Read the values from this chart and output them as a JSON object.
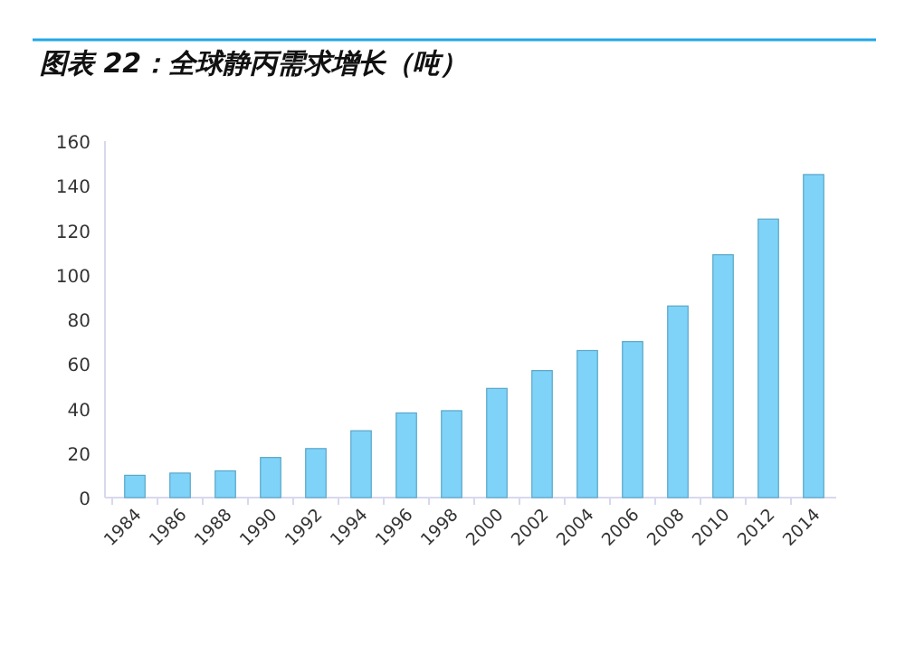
{
  "chart_data": {
    "type": "bar",
    "title": "图表 22：全球静丙需求增长（吨）",
    "categories": [
      "1984",
      "1986",
      "1988",
      "1990",
      "1992",
      "1994",
      "1996",
      "1998",
      "2000",
      "2002",
      "2004",
      "2006",
      "2008",
      "2010",
      "2012",
      "2014"
    ],
    "values": [
      10,
      11,
      12,
      18,
      22,
      30,
      38,
      39,
      49,
      57,
      66,
      70,
      86,
      109,
      125,
      145
    ],
    "color": "#7fd3f8",
    "ylim": [
      0,
      160
    ],
    "yticks": [
      0,
      20,
      40,
      60,
      80,
      100,
      120,
      140,
      160
    ],
    "grid": false
  }
}
